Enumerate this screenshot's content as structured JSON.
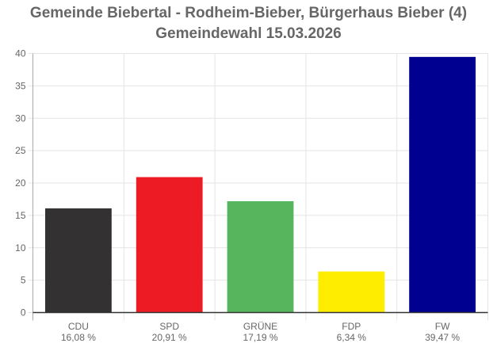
{
  "chart_data": {
    "type": "bar",
    "title": "Gemeinde Biebertal - Rodheim-Bieber, Bürgerhaus Bieber (4)",
    "subtitle": "Gemeindewahl 15.03.2026",
    "categories": [
      "CDU",
      "SPD",
      "GRÜNE",
      "FDP",
      "FW"
    ],
    "values": [
      16.08,
      20.91,
      17.19,
      6.34,
      39.47
    ],
    "value_labels": [
      "16,08 %",
      "20,91 %",
      "17,19 %",
      "6,34 %",
      "39,47 %"
    ],
    "colors": [
      "#333132",
      "#ed1c24",
      "#57b55d",
      "#ffed00",
      "#000090"
    ],
    "ylim": [
      0,
      40
    ],
    "yticks": [
      0,
      5,
      10,
      15,
      20,
      25,
      30,
      35,
      40
    ],
    "xlabel": "",
    "ylabel": "",
    "grid": true
  }
}
